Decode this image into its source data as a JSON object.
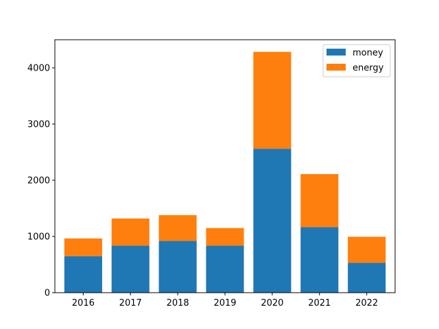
{
  "chart_data": {
    "type": "bar",
    "stacked": true,
    "categories": [
      "2016",
      "2017",
      "2018",
      "2019",
      "2020",
      "2021",
      "2022"
    ],
    "series": [
      {
        "name": "money",
        "color": "#1f77b4",
        "values": [
          650,
          835,
          920,
          835,
          2560,
          1165,
          530
        ]
      },
      {
        "name": "energy",
        "color": "#ff7f0e",
        "values": [
          315,
          485,
          460,
          315,
          1725,
          945,
          465
        ]
      }
    ],
    "title": "",
    "xlabel": "",
    "ylabel": "",
    "ylim": [
      0,
      4500
    ],
    "yticks": [
      0,
      1000,
      2000,
      3000,
      4000
    ],
    "legend": "top-right",
    "grid": false
  }
}
